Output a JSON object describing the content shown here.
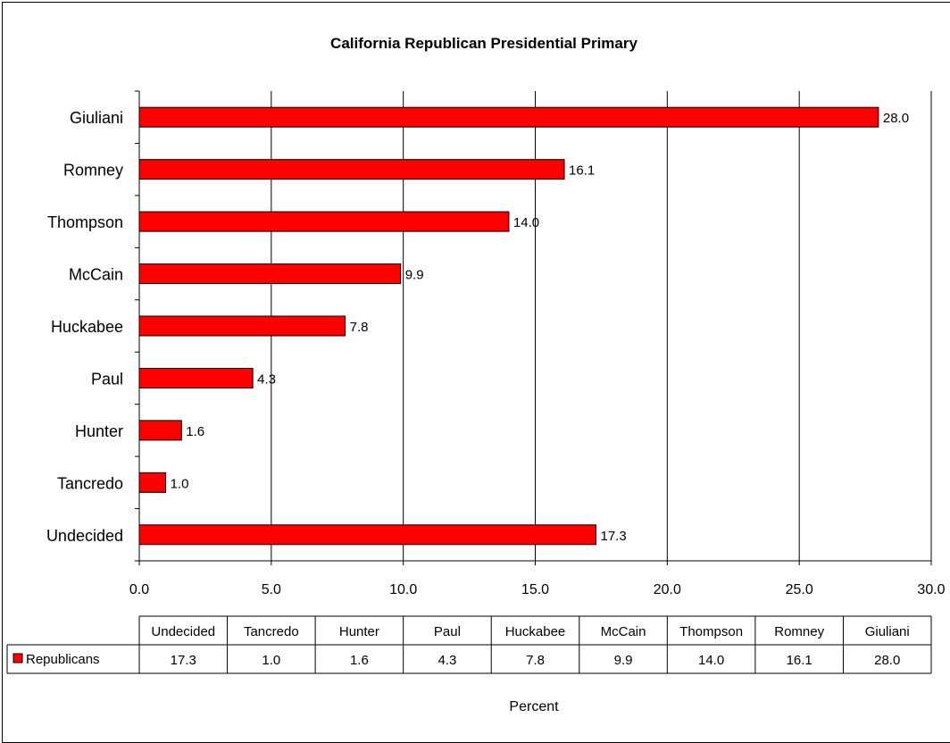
{
  "chart_data": {
    "type": "bar",
    "orientation": "horizontal",
    "title": "California Republican Presidential Primary",
    "xlabel": "Percent",
    "ylabel": "",
    "xlim": [
      0,
      30
    ],
    "x_ticks": [
      "0.0",
      "5.0",
      "10.0",
      "15.0",
      "20.0",
      "25.0",
      "30.0"
    ],
    "grid": "vertical major gridlines",
    "categories": [
      "Undecided",
      "Tancredo",
      "Hunter",
      "Paul",
      "Huckabee",
      "McCain",
      "Thompson",
      "Romney",
      "Giuliani"
    ],
    "series": [
      {
        "name": "Republicans",
        "values": [
          17.3,
          1.0,
          1.6,
          4.3,
          7.8,
          9.9,
          14.0,
          16.1,
          28.0
        ],
        "value_labels": [
          "17.3",
          "1.0",
          "1.6",
          "4.3",
          "7.8",
          "9.9",
          "14.0",
          "16.1",
          "28.0"
        ],
        "color": "#ff0000"
      }
    ],
    "data_table": true,
    "legend": "in data table"
  }
}
